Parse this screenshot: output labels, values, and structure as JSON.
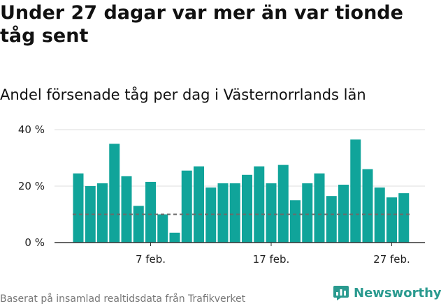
{
  "title": "Under 27 dagar var mer än var tionde tåg sent",
  "subtitle": "Andel försenade tåg per dag i Västernorrlands län",
  "source": "Baserat på insamlad realtidsdata från Trafikverket",
  "logo": {
    "text": "Newsworthy",
    "icon": "bar-chart-logo-icon"
  },
  "colors": {
    "bar": "#10a49a",
    "reference_line": "#6b6b6b",
    "grid": "#dddddd",
    "axis": "#333333",
    "brand": "#2a9a8f"
  },
  "chart_data": {
    "type": "bar",
    "categories": [
      "1 feb.",
      "2 feb.",
      "3 feb.",
      "4 feb.",
      "5 feb.",
      "6 feb.",
      "7 feb.",
      "8 feb.",
      "9 feb.",
      "10 feb.",
      "11 feb.",
      "12 feb.",
      "13 feb.",
      "14 feb.",
      "15 feb.",
      "16 feb.",
      "17 feb.",
      "18 feb.",
      "19 feb.",
      "20 feb.",
      "21 feb.",
      "22 feb.",
      "23 feb.",
      "24 feb.",
      "25 feb.",
      "26 feb.",
      "27 feb.",
      "28 feb."
    ],
    "values": [
      24.5,
      20,
      21,
      35,
      23.5,
      13,
      21.5,
      10,
      3.5,
      25.5,
      27,
      19.5,
      21,
      21,
      24,
      27,
      21,
      27.5,
      15,
      21,
      24.5,
      16.5,
      20.5,
      36.5,
      26,
      19.5,
      16,
      17.5
    ],
    "reference_line": 10,
    "ylim": [
      0,
      40
    ],
    "yticks": [
      0,
      20,
      40
    ],
    "ytick_labels": [
      "0 %",
      "20 %",
      "40 %"
    ],
    "xtick_labels": [
      {
        "label": "7 feb.",
        "category": "7 feb."
      },
      {
        "label": "17 feb.",
        "category": "17 feb."
      },
      {
        "label": "27 feb.",
        "category": "27 feb."
      }
    ],
    "grid": true,
    "xlabel": "",
    "ylabel": ""
  }
}
